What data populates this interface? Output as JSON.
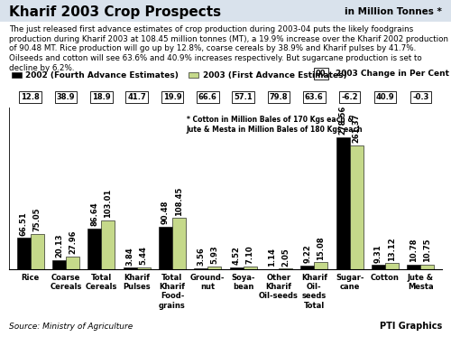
{
  "chart_data": {
    "type": "bar",
    "title": "Kharif 2003 Crop Prospects",
    "subtitle": "in Million Tonnes *",
    "annotations": [
      "The just released first advance estimates of crop production during 2003-04 puts the likely foodgrains production during Kharif 2003 at 108.45 million tonnes (MT), a 19.9% increase over the Kharif 2002 production of 90.48 MT. Rice production will go up by 12.8%, coarse cereals by 38.9% and Kharif pulses by 41.7%. Oilseeds and cotton will see 63.6% and 40.9% increases respectively. But sugarcane production is set to decline by 6.2%.",
      "* Cotton in Million Bales of 170 Kgs each &\nJute & Mesta in Million Bales of 180 Kgs each"
    ],
    "source": "Source: Ministry of Agriculture",
    "credit": "PTI Graphics",
    "categories": [
      "Rice",
      "Coarse\nCereals",
      "Total\nCereals",
      "Kharif\nPulses",
      "Total\nKharif\nFood-\ngrains",
      "Ground-\nnut",
      "Soya-\nbean",
      "Other\nKharif\nOil-seeds",
      "Kharif\nOil-\nseeds\nTotal",
      "Sugar-\ncane",
      "Cotton",
      "Jute &\nMesta"
    ],
    "series": [
      {
        "name": "2002 (Fourth Advance Estimates)",
        "color": "#000000",
        "values": [
          66.51,
          20.13,
          86.64,
          3.84,
          90.48,
          3.56,
          4.52,
          1.14,
          9.22,
          278.56,
          9.31,
          10.78
        ],
        "value_labels": [
          "66.51",
          "20.13",
          "86.64",
          "3.84",
          "90.48",
          "3.56",
          "4.52",
          "1.14",
          "9.22",
          "278.56",
          "9.31",
          "10.78"
        ]
      },
      {
        "name": "2003 (First Advance Estimates)",
        "color": "#c5d98a",
        "values": [
          75.05,
          27.96,
          103.01,
          5.44,
          108.45,
          5.93,
          7.1,
          2.05,
          15.08,
          261.37,
          13.12,
          10.75
        ],
        "value_labels": [
          "75.05",
          "27.96",
          "103.01",
          "5.44",
          "108.45",
          "5.93",
          "7.10",
          "2.05",
          "15.08",
          "261.37",
          "13.12",
          "10.75"
        ]
      }
    ],
    "change": {
      "name": "2003 Change in Per Cent",
      "symbol": "00",
      "values": [
        12.8,
        38.9,
        18.9,
        41.7,
        19.9,
        66.6,
        57.1,
        79.8,
        63.6,
        -6.2,
        40.9,
        -0.3
      ]
    },
    "ylim": [
      0,
      340
    ],
    "yticks": [],
    "data_labels": true,
    "tick_labels": "x",
    "legend": "upper left",
    "grid": false
  }
}
